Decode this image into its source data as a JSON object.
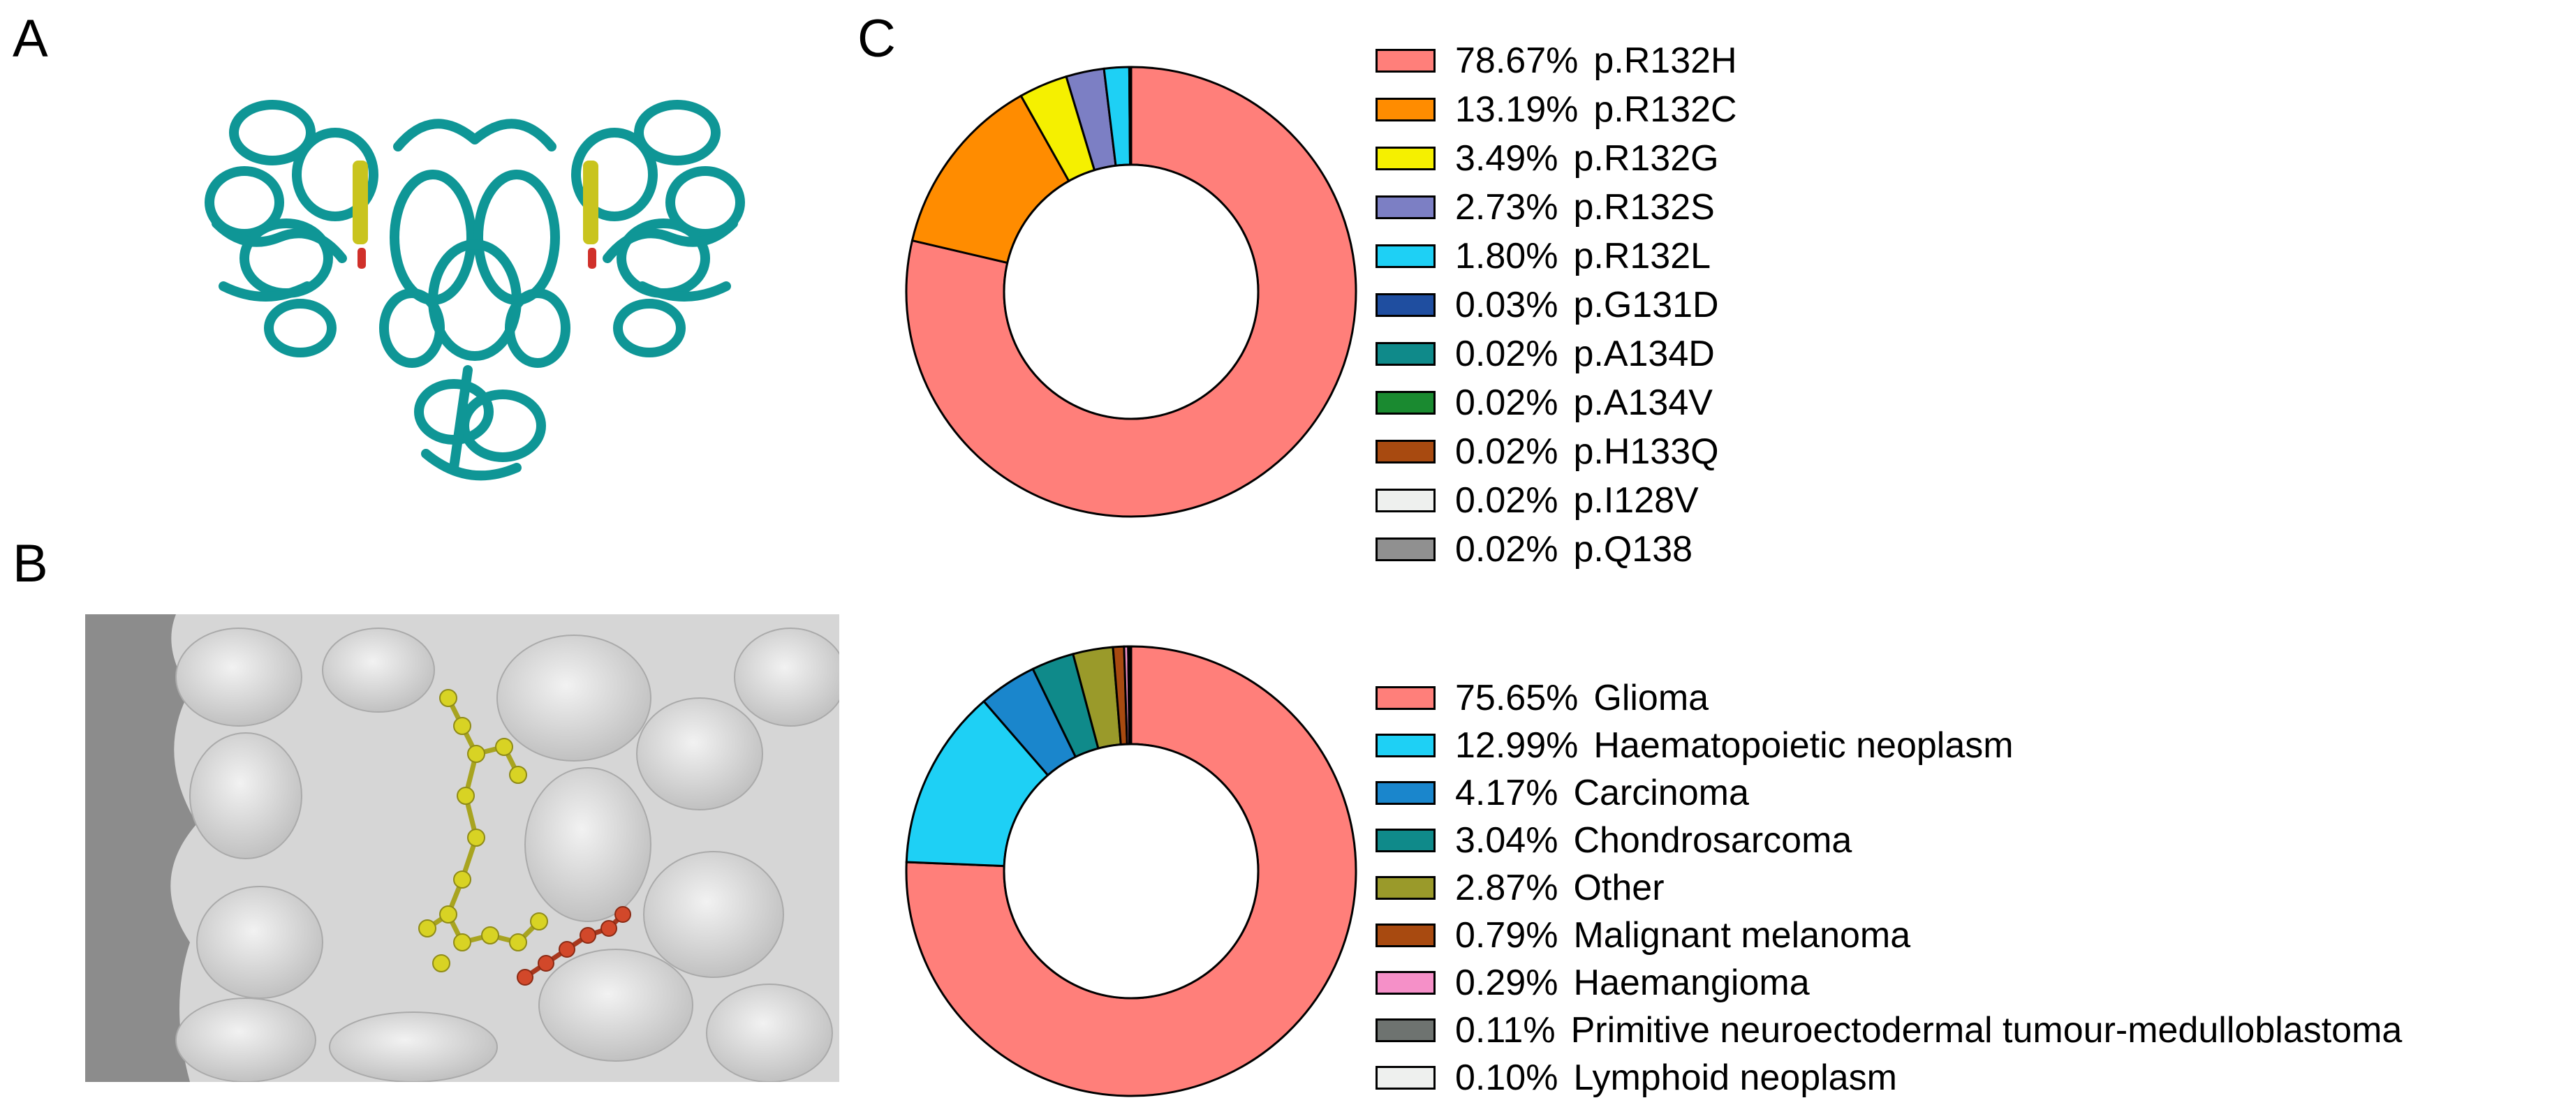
{
  "panel_labels": {
    "a": "A",
    "b": "B",
    "c": "C"
  },
  "colors": {
    "protein": "#0f9696",
    "ligand_yellow": "#c9c41e",
    "ligand_red": "#c0391e",
    "surface": "#d9d9d9",
    "surface_bg": "#8c8c8c"
  },
  "chart_data": [
    {
      "type": "pie",
      "variant": "donut",
      "title": "",
      "legend_position": "right",
      "series": [
        {
          "name": "p.R132H",
          "label": "78.67%",
          "value": 78.67,
          "color": "#ff7f7a"
        },
        {
          "name": "p.R132C",
          "label": "13.19%",
          "value": 13.19,
          "color": "#ff8c00"
        },
        {
          "name": "p.R132G",
          "label": "3.49%",
          "value": 3.49,
          "color": "#f5f000"
        },
        {
          "name": "p.R132S",
          "label": "2.73%",
          "value": 2.73,
          "color": "#7c7fc4"
        },
        {
          "name": "p.R132L",
          "label": "1.80%",
          "value": 1.8,
          "color": "#1ed0f5"
        },
        {
          "name": "p.G131D",
          "label": "0.03%",
          "value": 0.03,
          "color": "#1f4ea0"
        },
        {
          "name": "p.A134D",
          "label": "0.02%",
          "value": 0.02,
          "color": "#0f8a8a"
        },
        {
          "name": "p.A134V",
          "label": "0.02%",
          "value": 0.02,
          "color": "#1a8a30"
        },
        {
          "name": "p.H133Q",
          "label": "0.02%",
          "value": 0.02,
          "color": "#a84a10"
        },
        {
          "name": "p.I128V",
          "label": "0.02%",
          "value": 0.02,
          "color": "#eef0ee"
        },
        {
          "name": "p.Q138",
          "label": "0.02%",
          "value": 0.02,
          "color": "#909090"
        }
      ]
    },
    {
      "type": "pie",
      "variant": "donut",
      "title": "",
      "legend_position": "right",
      "series": [
        {
          "name": "Glioma",
          "label": "75.65%",
          "value": 75.65,
          "color": "#ff7f7a"
        },
        {
          "name": "Haematopoietic neoplasm",
          "label": "12.99%",
          "value": 12.99,
          "color": "#1ed0f5"
        },
        {
          "name": "Carcinoma",
          "label": "4.17%",
          "value": 4.17,
          "color": "#1a86cc"
        },
        {
          "name": "Chondrosarcoma",
          "label": "3.04%",
          "value": 3.04,
          "color": "#0f8a8a"
        },
        {
          "name": "Other",
          "label": "2.87%",
          "value": 2.87,
          "color": "#9a9a2a"
        },
        {
          "name": "Malignant melanoma",
          "label": "0.79%",
          "value": 0.79,
          "color": "#a84a10"
        },
        {
          "name": "Haemangioma",
          "label": "0.29%",
          "value": 0.29,
          "color": "#f590c8"
        },
        {
          "name": "Primitive neuroectodermal tumour-medulloblastoma",
          "label": "0.11%",
          "value": 0.11,
          "color": "#6e7370"
        },
        {
          "name": "Lymphoid neoplasm",
          "label": "0.10%",
          "value": 0.1,
          "color": "#eef0ee"
        }
      ]
    }
  ]
}
